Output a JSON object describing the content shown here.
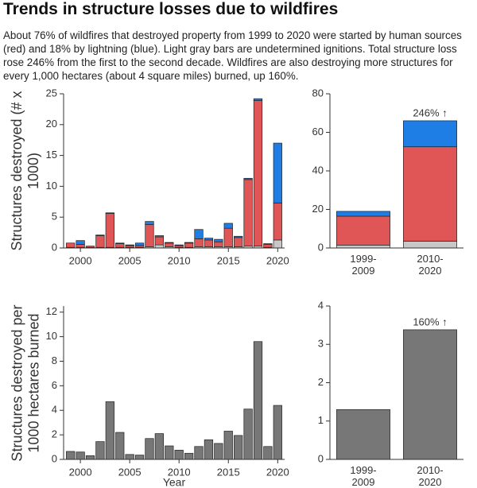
{
  "header": {
    "title": "Trends in structure losses due to wildfires",
    "description": "About 76% of wildfires that destroyed property from 1999 to 2020 were started by human sources (red) and 18% by lightning (blue). Light gray bars are undetermined ignitions. Total structure loss rose 246% from the first to the second decade. Wildfires are also destroying more structures for every 1,000 hectares (about 4 square miles) burned, up 160%."
  },
  "chart_data": [
    {
      "type": "bar",
      "stacked": true,
      "ylabel": "Structures destroyed (# x 1000)",
      "x": [
        1999,
        2000,
        2001,
        2002,
        2003,
        2004,
        2005,
        2006,
        2007,
        2008,
        2009,
        2010,
        2011,
        2012,
        2013,
        2014,
        2015,
        2016,
        2017,
        2018,
        2019,
        2020
      ],
      "xlim": [
        1998.3,
        2020.7
      ],
      "xticks": [
        2000,
        2005,
        2010,
        2015,
        2020
      ],
      "ylim": [
        0,
        25
      ],
      "yticks": [
        0,
        5,
        10,
        15,
        20,
        25
      ],
      "series": [
        {
          "color": "#c8c8c8",
          "values": [
            0.1,
            0.1,
            0.1,
            0.1,
            0.1,
            0.1,
            0.1,
            0.1,
            0.2,
            0.5,
            0.2,
            0.1,
            0.1,
            0.2,
            0.2,
            0.2,
            0.2,
            0.2,
            0.3,
            0.3,
            0.1,
            1.3
          ]
        },
        {
          "color": "#e05555",
          "values": [
            0.7,
            0.5,
            0.2,
            1.9,
            5.5,
            0.6,
            0.3,
            0.3,
            3.6,
            1.3,
            0.6,
            0.3,
            0.7,
            1.3,
            1.1,
            0.8,
            3.0,
            1.5,
            10.8,
            23.6,
            0.5,
            6.0
          ]
        },
        {
          "color": "#1f7de6",
          "values": [
            0,
            0.6,
            0,
            0.1,
            0.1,
            0.1,
            0.1,
            0.4,
            0.5,
            0.2,
            0.1,
            0.1,
            0.1,
            1.5,
            0.3,
            0.4,
            0.8,
            0.2,
            0.2,
            0.3,
            0.1,
            9.7
          ]
        }
      ]
    },
    {
      "type": "bar",
      "stacked": true,
      "annotation": "246% ↑",
      "categories": [
        "1999-2009",
        "2010-2020"
      ],
      "ylim": [
        0,
        80
      ],
      "yticks": [
        0,
        20,
        40,
        60,
        80
      ],
      "series": [
        {
          "color": "#c8c8c8",
          "values": [
            1.5,
            3.5
          ]
        },
        {
          "color": "#e05555",
          "values": [
            15,
            49
          ]
        },
        {
          "color": "#1f7de6",
          "values": [
            2.5,
            13.5
          ]
        }
      ]
    },
    {
      "type": "bar",
      "ylabel": "Structures destroyed per 1000 hectares burned",
      "xlabel": "Year",
      "x": [
        1999,
        2000,
        2001,
        2002,
        2003,
        2004,
        2005,
        2006,
        2007,
        2008,
        2009,
        2010,
        2011,
        2012,
        2013,
        2014,
        2015,
        2016,
        2017,
        2018,
        2019,
        2020
      ],
      "xlim": [
        1998.3,
        2020.7
      ],
      "xticks": [
        2000,
        2005,
        2010,
        2015,
        2020
      ],
      "ylim": [
        0,
        12.5
      ],
      "yticks": [
        0,
        2,
        4,
        6,
        8,
        10,
        12
      ],
      "color": "#777777",
      "values": [
        0.65,
        0.6,
        0.3,
        1.45,
        4.7,
        2.2,
        0.4,
        0.35,
        1.7,
        2.1,
        1.1,
        0.75,
        0.5,
        1.05,
        1.6,
        1.3,
        2.3,
        1.95,
        4.1,
        9.6,
        1.05,
        4.4
      ]
    },
    {
      "type": "bar",
      "annotation": "160% ↑",
      "categories": [
        "1999-2009",
        "2010-2020"
      ],
      "ylim": [
        0,
        4
      ],
      "yticks": [
        0,
        1,
        2,
        3,
        4
      ],
      "color": "#777777",
      "values": [
        1.3,
        3.38
      ]
    }
  ]
}
